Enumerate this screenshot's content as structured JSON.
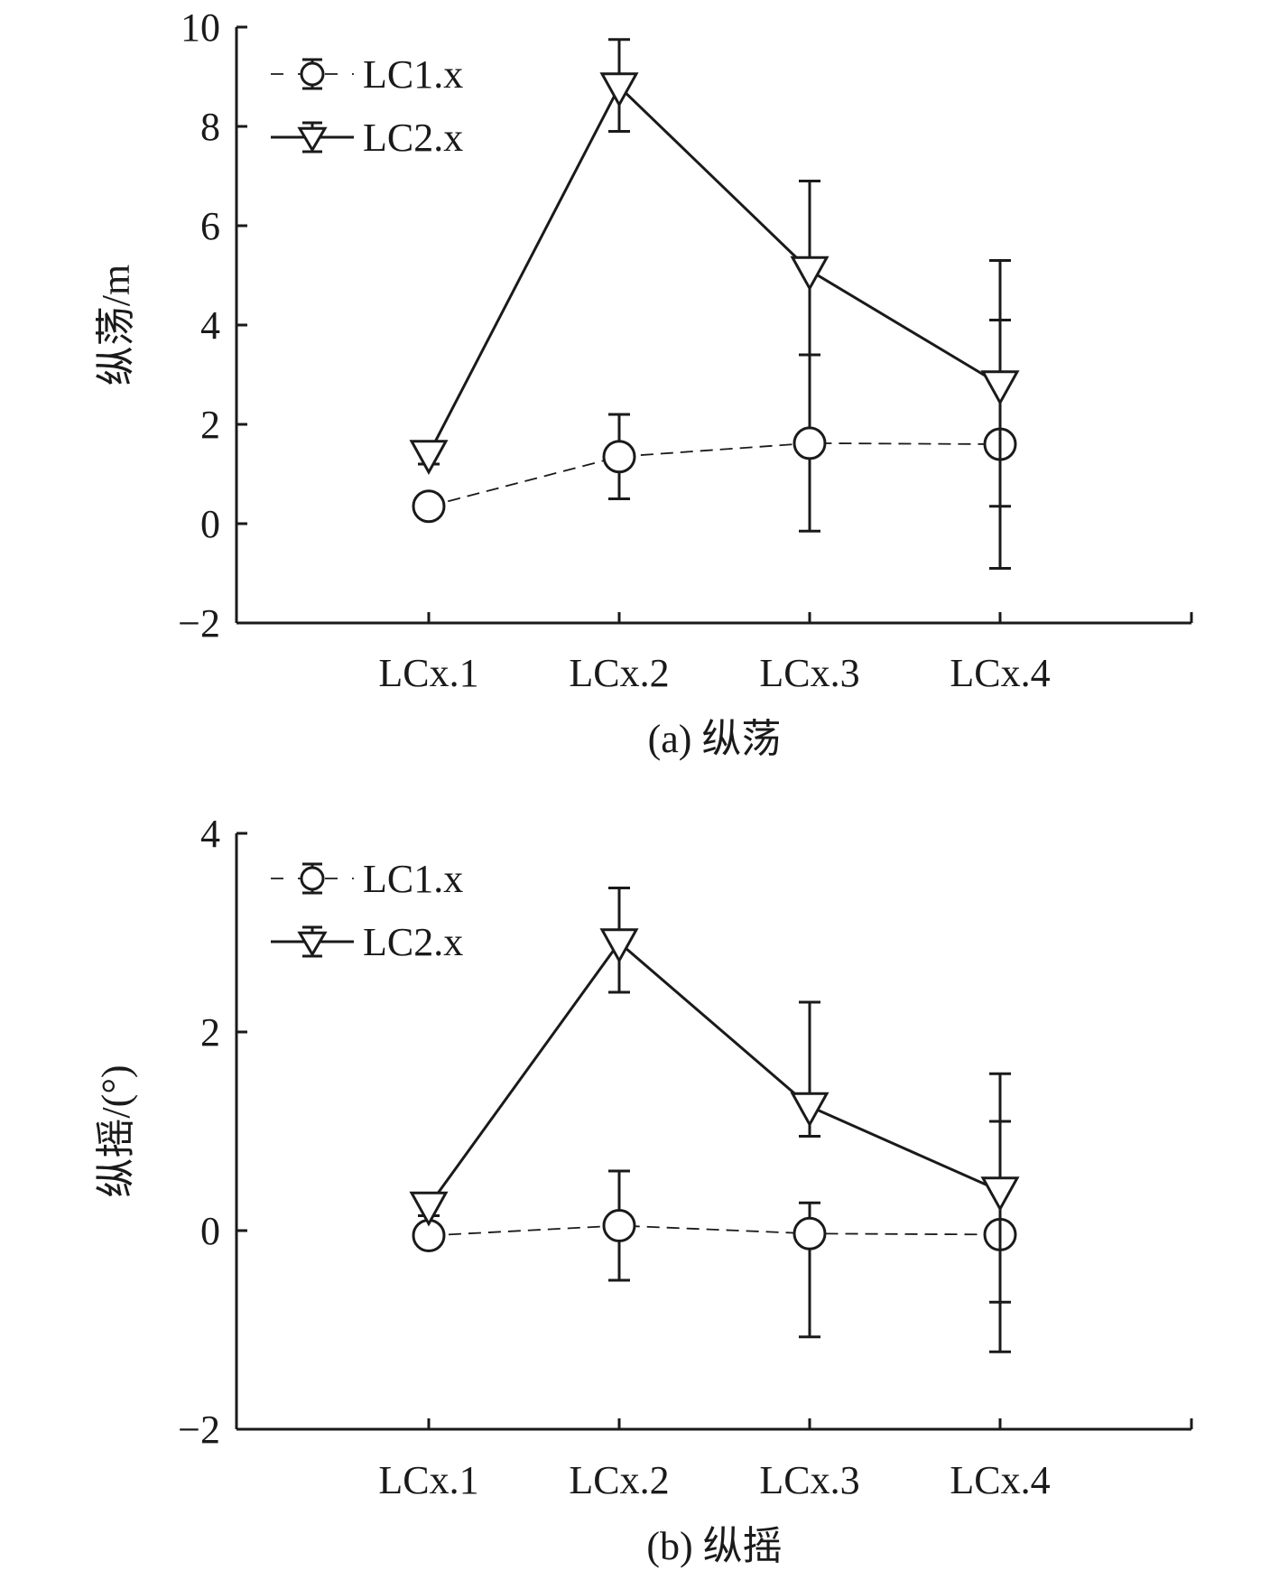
{
  "chart_data": [
    {
      "type": "line",
      "caption": "(a) 纵荡",
      "ylabel": "纵荡/m",
      "xlabel": "",
      "categories": [
        "LCx.1",
        "LCx.2",
        "LCx.3",
        "LCx.4"
      ],
      "ylim": [
        -2,
        10
      ],
      "yticks": [
        "−2",
        "0",
        "2",
        "4",
        "6",
        "8",
        "10"
      ],
      "ytick_values": [
        -2,
        0,
        2,
        4,
        6,
        8,
        10
      ],
      "legend_position": "top-left",
      "grid": false,
      "series": [
        {
          "name": "LC1.x",
          "marker": "circle",
          "line_style": "dashed",
          "values": [
            0.35,
            1.35,
            1.62,
            1.6
          ],
          "err_low": [
            0.2,
            0.5,
            -0.15,
            -0.9
          ],
          "err_high": [
            0.5,
            2.2,
            3.4,
            4.1
          ]
        },
        {
          "name": "LC2.x",
          "marker": "triangle-down",
          "line_style": "solid",
          "values": [
            1.4,
            8.8,
            5.1,
            2.8
          ],
          "err_low": [
            1.2,
            7.9,
            3.4,
            0.35
          ],
          "err_high": [
            1.5,
            9.75,
            6.9,
            5.3
          ]
        }
      ]
    },
    {
      "type": "line",
      "caption": "(b) 纵摇",
      "ylabel": "纵摇/(°)",
      "xlabel": "",
      "categories": [
        "LCx.1",
        "LCx.2",
        "LCx.3",
        "LCx.4"
      ],
      "ylim": [
        -2,
        4
      ],
      "yticks": [
        "−2",
        "0",
        "2",
        "4"
      ],
      "ytick_values": [
        -2,
        0,
        2,
        4
      ],
      "legend_position": "top-left",
      "grid": false,
      "series": [
        {
          "name": "LC1.x",
          "marker": "circle",
          "line_style": "dashed",
          "values": [
            -0.05,
            0.05,
            -0.03,
            -0.04
          ],
          "err_low": [
            -0.15,
            -0.5,
            -1.07,
            -1.22
          ],
          "err_high": [
            0.05,
            0.6,
            0.28,
            1.1
          ]
        },
        {
          "name": "LC2.x",
          "marker": "triangle-down",
          "line_style": "solid",
          "values": [
            0.25,
            2.9,
            1.25,
            0.4
          ],
          "err_low": [
            0.15,
            2.4,
            0.95,
            -0.72
          ],
          "err_high": [
            0.35,
            3.45,
            2.3,
            1.58
          ]
        }
      ]
    }
  ]
}
